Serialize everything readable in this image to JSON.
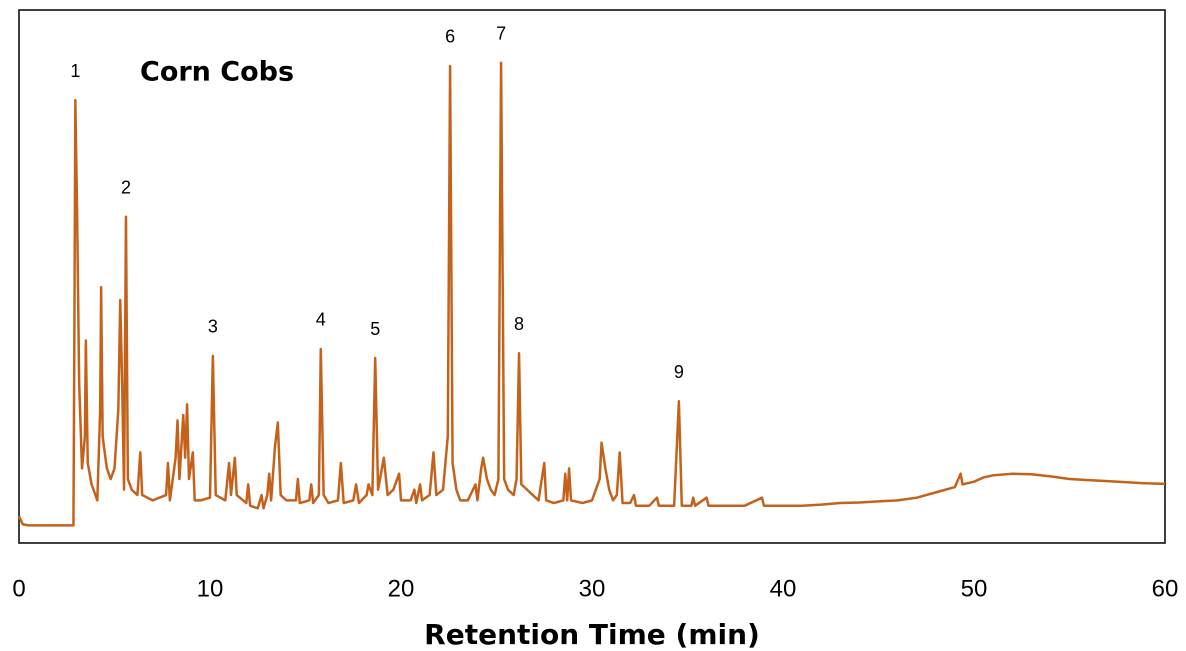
{
  "chart_data": {
    "type": "line",
    "title": "Corn Cobs",
    "xlabel": "Retention Time (min)",
    "color": "#c4621c",
    "xlim": [
      0,
      60
    ],
    "xticks": [
      0,
      10,
      20,
      30,
      40,
      50,
      60
    ],
    "ylim": [
      0,
      100
    ],
    "x": [
      0,
      0.2,
      0.5,
      1,
      2,
      2.85,
      2.9,
      2.95,
      3.05,
      3.15,
      3.3,
      3.45,
      3.5,
      3.6,
      3.8,
      4.0,
      4.1,
      4.25,
      4.3,
      4.38,
      4.45,
      4.6,
      4.8,
      5.0,
      5.2,
      5.3,
      5.4,
      5.5,
      5.6,
      5.7,
      5.9,
      6.2,
      6.35,
      6.45,
      7,
      7.7,
      7.8,
      7.9,
      8.2,
      8.3,
      8.4,
      8.6,
      8.7,
      8.8,
      8.9,
      9.1,
      9.2,
      9.5,
      10.0,
      10.15,
      10.3,
      10.8,
      11.0,
      11.1,
      11.3,
      11.4,
      11.9,
      12.0,
      12.1,
      12.5,
      12.7,
      12.8,
      13.0,
      13.1,
      13.2,
      13.4,
      13.55,
      13.7,
      14.0,
      14.5,
      14.6,
      14.7,
      15.2,
      15.3,
      15.4,
      15.7,
      15.8,
      15.95,
      16.2,
      16.7,
      16.85,
      17.0,
      17.5,
      17.65,
      17.8,
      18.2,
      18.3,
      18.5,
      18.65,
      18.8,
      19.0,
      19.1,
      19.3,
      19.6,
      19.9,
      20.0,
      20.5,
      20.7,
      20.8,
      21.0,
      21.1,
      21.5,
      21.7,
      21.85,
      22.2,
      22.45,
      22.57,
      22.7,
      22.9,
      23.1,
      23.5,
      23.9,
      24.0,
      24.2,
      24.3,
      24.5,
      24.7,
      24.9,
      25.1,
      25.24,
      25.4,
      25.6,
      25.9,
      26.05,
      26.18,
      26.3,
      26.6,
      26.9,
      27.2,
      27.5,
      27.6,
      28.0,
      28.5,
      28.6,
      28.7,
      28.8,
      28.9,
      29.5,
      30.0,
      30.2,
      30.4,
      30.5,
      30.7,
      30.9,
      31.1,
      31.3,
      31.45,
      31.6,
      32.0,
      32.2,
      32.3,
      33.0,
      33.4,
      33.5,
      34.3,
      34.55,
      34.7,
      35.2,
      35.3,
      35.4,
      36.0,
      36.1,
      37,
      38,
      38.9,
      39.0,
      40,
      41,
      42,
      43,
      44,
      45,
      46,
      47,
      48,
      49,
      49.3,
      49.4,
      50,
      50.5,
      51,
      52,
      53,
      54,
      55,
      56,
      57,
      58,
      59,
      60
    ],
    "values": [
      5,
      3.5,
      3.3,
      3.3,
      3.3,
      3.3,
      40,
      83.1,
      60,
      30,
      14,
      20,
      38,
      15,
      11,
      9,
      8,
      25,
      48,
      20,
      18,
      14,
      12,
      14,
      25,
      45.6,
      30,
      10,
      61.2,
      12,
      10,
      9,
      17,
      9,
      8,
      9,
      15,
      8,
      16,
      23,
      12,
      24,
      16,
      26,
      12,
      17,
      8,
      8,
      8.5,
      35.1,
      9,
      8,
      15,
      9,
      16,
      9,
      7.5,
      11,
      7,
      6.5,
      9,
      6.5,
      9,
      13,
      8,
      18,
      22.6,
      9,
      8,
      8,
      12,
      7.5,
      8,
      11,
      7.5,
      9,
      36.4,
      9,
      7.5,
      8,
      15,
      7.5,
      8,
      11,
      7.5,
      9,
      11,
      9,
      34.7,
      10,
      14,
      16,
      9,
      10,
      13,
      8,
      8,
      10,
      7.5,
      11,
      8,
      9,
      17,
      9,
      10,
      20,
      89.5,
      15,
      10,
      8,
      8,
      11,
      8,
      14,
      16,
      12,
      10,
      9,
      12,
      90.1,
      12,
      10,
      9,
      12,
      35.6,
      11,
      10,
      9,
      8,
      15,
      8,
      7.5,
      8,
      13,
      8,
      14,
      8,
      7.5,
      8,
      10,
      12,
      18.8,
      14,
      10,
      8,
      9,
      17,
      7.5,
      7.5,
      9,
      7,
      7,
      8.5,
      7,
      7,
      26.6,
      7,
      7,
      8.5,
      7,
      8.5,
      7,
      7,
      7,
      8.5,
      7,
      7,
      7,
      7.2,
      7.5,
      7.6,
      7.8,
      8,
      8.5,
      9.5,
      10.5,
      13,
      11,
      11.5,
      12.3,
      12.7,
      13,
      12.9,
      12.5,
      12,
      11.8,
      11.6,
      11.4,
      11.2,
      11.1
    ],
    "annotations": [
      {
        "text": "1",
        "x": 2.95
      },
      {
        "text": "2",
        "x": 5.6
      },
      {
        "text": "3",
        "x": 10.15
      },
      {
        "text": "4",
        "x": 15.8
      },
      {
        "text": "5",
        "x": 18.65
      },
      {
        "text": "6",
        "x": 22.57
      },
      {
        "text": "7",
        "x": 25.24
      },
      {
        "text": "8",
        "x": 26.18
      },
      {
        "text": "9",
        "x": 34.55
      }
    ]
  }
}
